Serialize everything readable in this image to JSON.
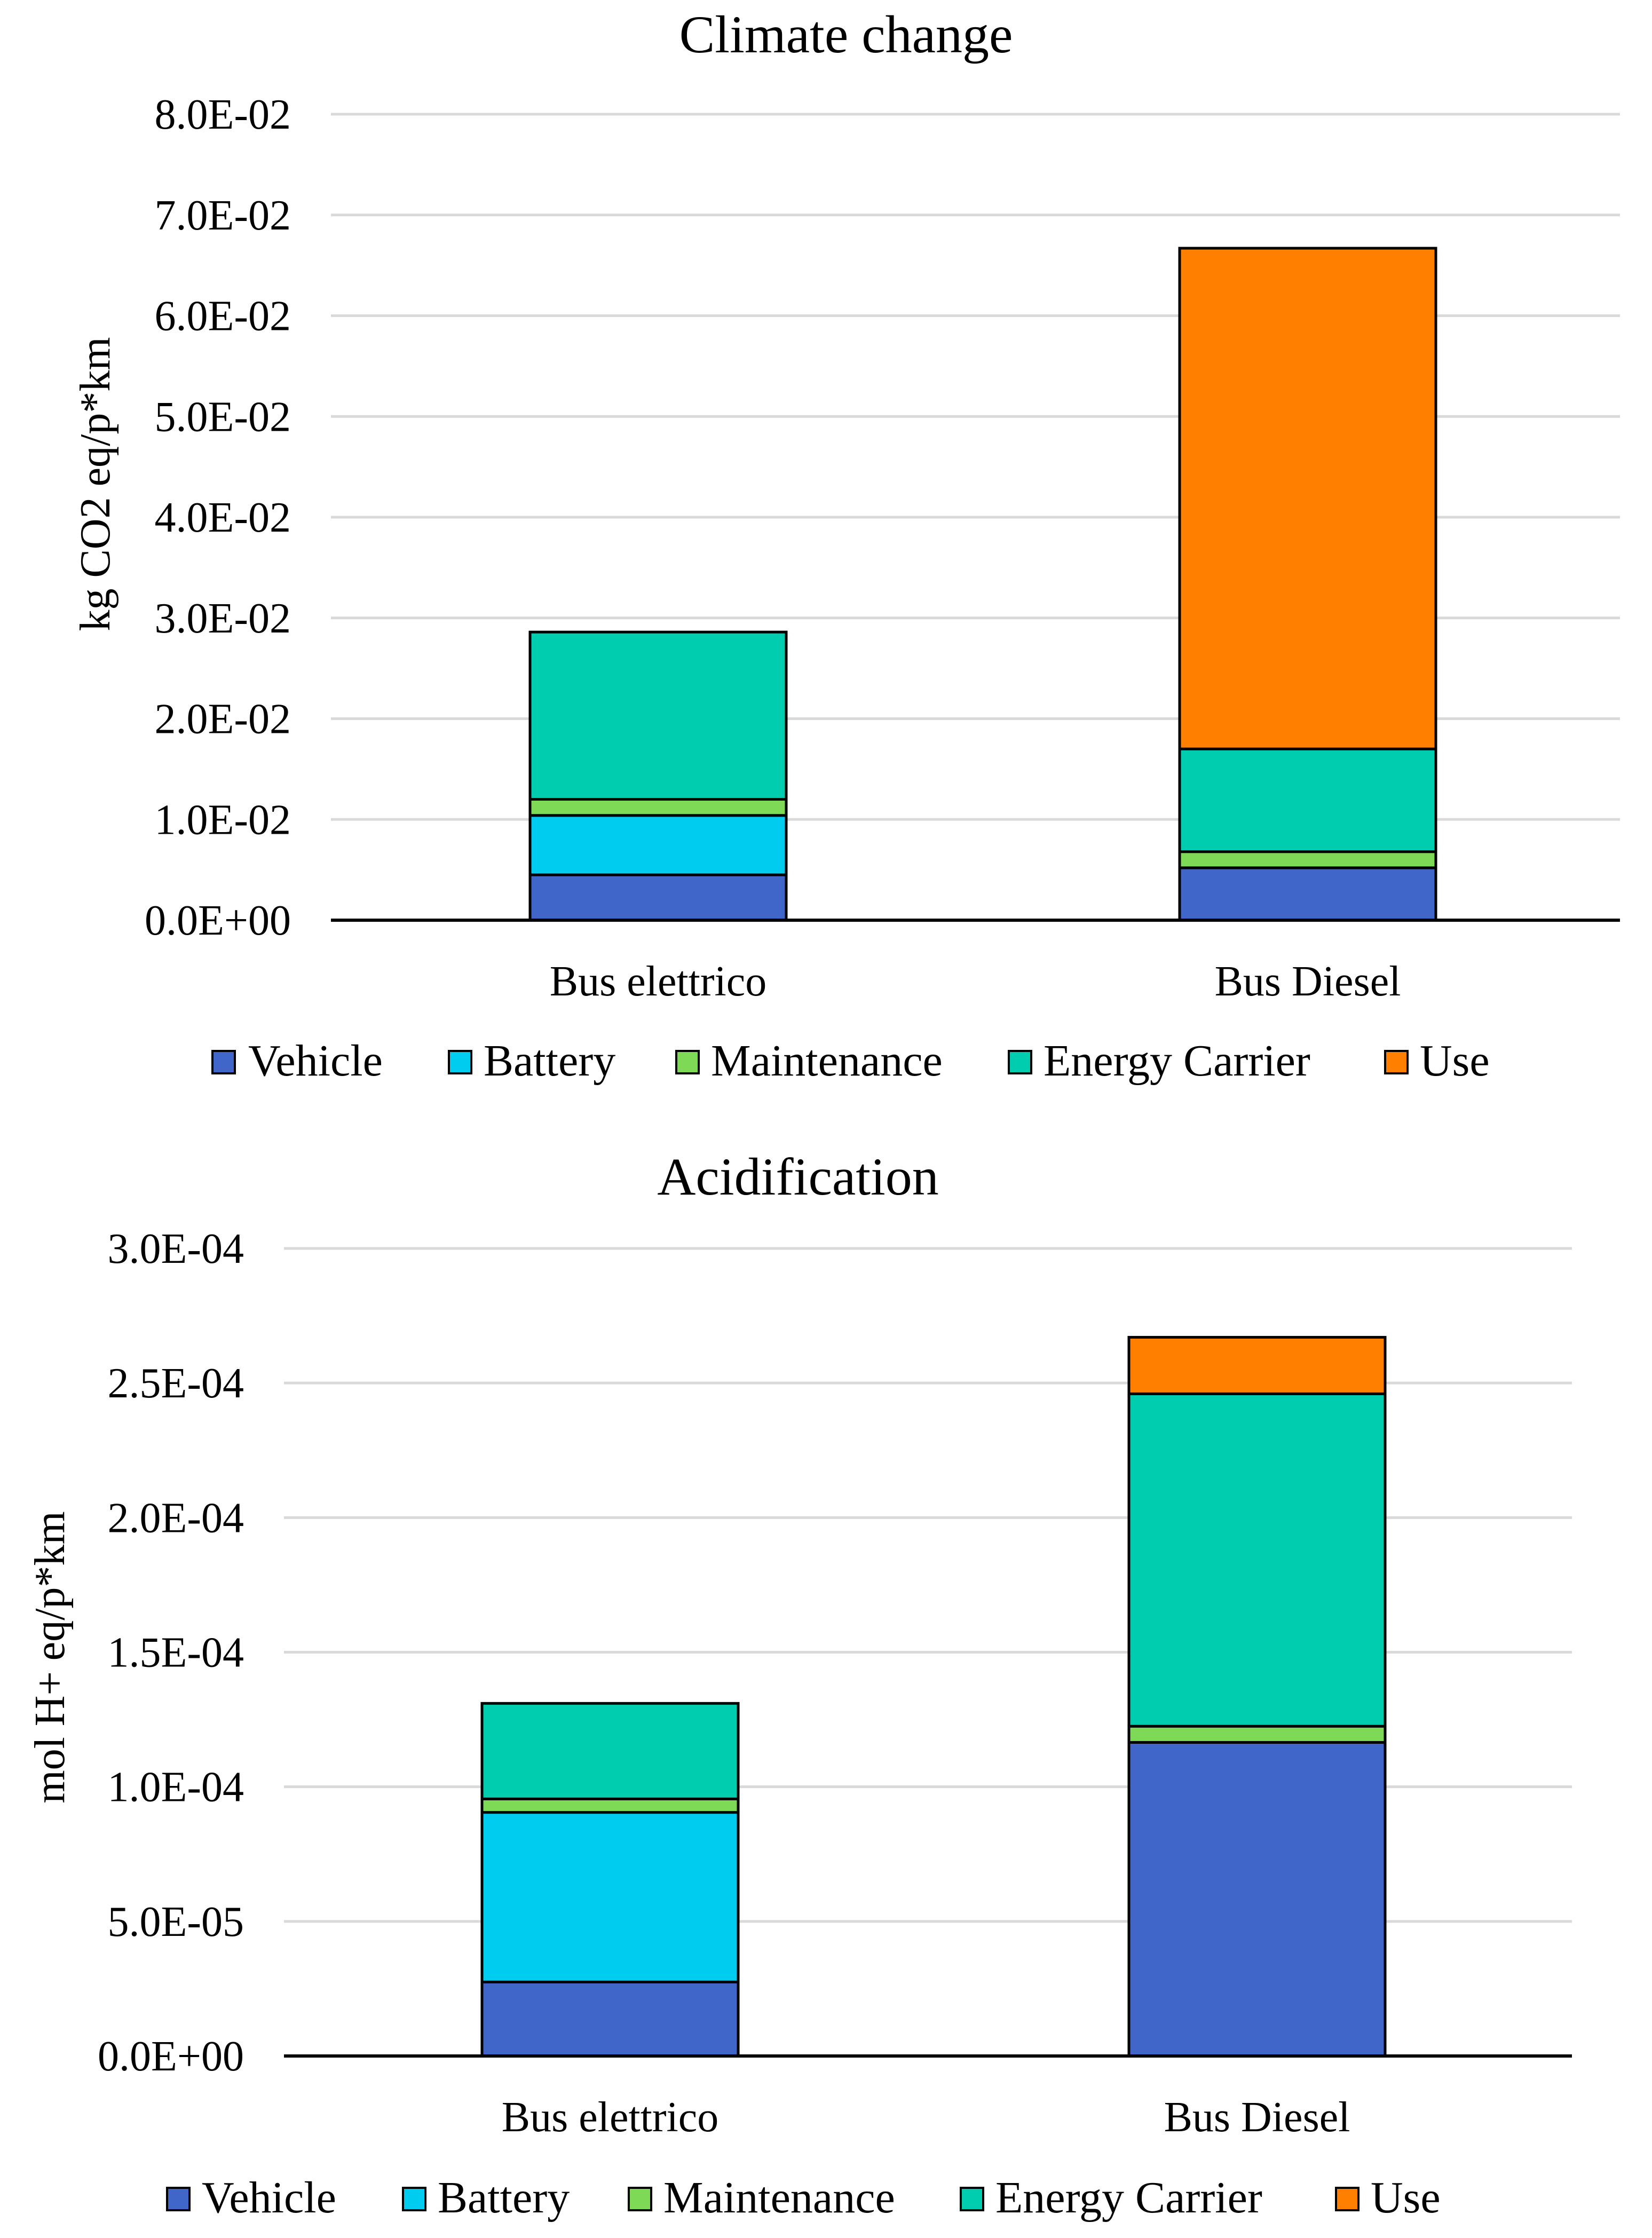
{
  "colors": {
    "Vehicle": "#4166C9",
    "Battery": "#00CCF0",
    "Maintenance": "#7ED957",
    "Energy Carrier": "#00CCAF",
    "Use": "#FF8000",
    "grid": "#D9D9D9",
    "axis": "#000000"
  },
  "chart_data": [
    {
      "type": "bar",
      "stacked": true,
      "title": "Climate change",
      "ylabel": "kg CO2 eq/p*km",
      "xlabel": "",
      "categories": [
        "Bus elettrico",
        "Bus Diesel"
      ],
      "ylim": [
        0,
        0.08
      ],
      "yticks": [
        0,
        0.01,
        0.02,
        0.03,
        0.04,
        0.05,
        0.06,
        0.07,
        0.08
      ],
      "ytick_labels": [
        "0.0E+00",
        "1.0E-02",
        "2.0E-02",
        "3.0E-02",
        "4.0E-02",
        "5.0E-02",
        "6.0E-02",
        "7.0E-02",
        "8.0E-02"
      ],
      "grid": true,
      "legend": "bottom",
      "series": [
        {
          "name": "Vehicle",
          "values": [
            0.0045,
            0.0052
          ]
        },
        {
          "name": "Battery",
          "values": [
            0.0059,
            0.0
          ]
        },
        {
          "name": "Maintenance",
          "values": [
            0.0016,
            0.0016
          ]
        },
        {
          "name": "Energy Carrier",
          "values": [
            0.0166,
            0.0102
          ]
        },
        {
          "name": "Use",
          "values": [
            0.0,
            0.0497
          ]
        }
      ]
    },
    {
      "type": "bar",
      "stacked": true,
      "title": "Acidification",
      "ylabel": "mol H+ eq/p*km",
      "xlabel": "",
      "categories": [
        "Bus elettrico",
        "Bus Diesel"
      ],
      "ylim": [
        0,
        0.0003
      ],
      "yticks": [
        0,
        5e-05,
        0.0001,
        0.00015,
        0.0002,
        0.00025,
        0.0003
      ],
      "ytick_labels": [
        "0.0E+00",
        "5.0E-05",
        "1.0E-04",
        "1.5E-04",
        "2.0E-04",
        "2.5E-04",
        "3.0E-04"
      ],
      "grid": true,
      "legend": "bottom",
      "series": [
        {
          "name": "Vehicle",
          "values": [
            2.75e-05,
            0.0001165
          ]
        },
        {
          "name": "Battery",
          "values": [
            6.3e-05,
            0.0
          ]
        },
        {
          "name": "Maintenance",
          "values": [
            5e-06,
            6e-06
          ]
        },
        {
          "name": "Energy Carrier",
          "values": [
            3.55e-05,
            0.0001235
          ]
        },
        {
          "name": "Use",
          "values": [
            0.0,
            2.1e-05
          ]
        }
      ]
    }
  ]
}
